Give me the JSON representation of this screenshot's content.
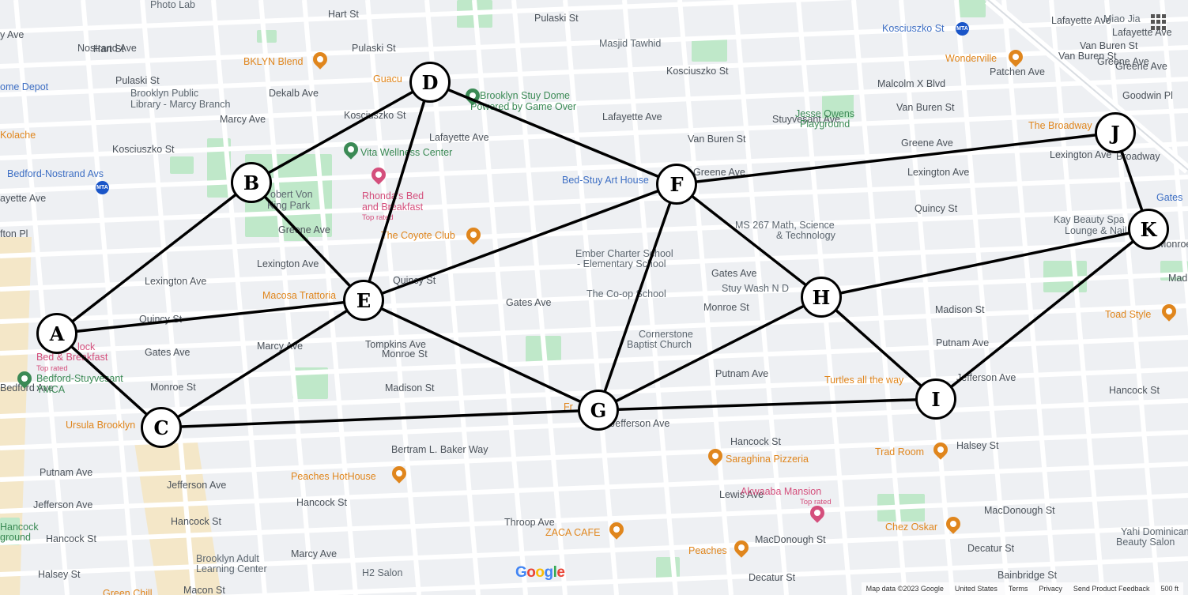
{
  "map": {
    "street_labels": [
      {
        "id": "hart-st",
        "text": "Hart St"
      },
      {
        "id": "hart-st-2",
        "text": "Hart St"
      },
      {
        "id": "pulaski-st",
        "text": "Pulaski St"
      },
      {
        "id": "pulaski-st-2",
        "text": "Pulaski St"
      },
      {
        "id": "pulaski-st-3",
        "text": "Pulaski St"
      },
      {
        "id": "dekalb-ave",
        "text": "Dekalb Ave"
      },
      {
        "id": "kosciuszko-st",
        "text": "Kosciuszko St"
      },
      {
        "id": "kosciuszko-st-2",
        "text": "Kosciuszko St"
      },
      {
        "id": "kosciuszko-st-3",
        "text": "Kosciuszko St"
      },
      {
        "id": "lafayette-ave",
        "text": "Lafayette Ave"
      },
      {
        "id": "lafayette-ave-2",
        "text": "Lafayette Ave"
      },
      {
        "id": "lafayette-ave-3",
        "text": "Lafayette Ave"
      },
      {
        "id": "van-buren-st",
        "text": "Van Buren St"
      },
      {
        "id": "van-buren-st-2",
        "text": "Van Buren St"
      },
      {
        "id": "van-buren-st-3",
        "text": "Van Buren St"
      },
      {
        "id": "greene-ave",
        "text": "Greene Ave"
      },
      {
        "id": "greene-ave-2",
        "text": "Greene Ave"
      },
      {
        "id": "greene-ave-3",
        "text": "Greene Ave"
      },
      {
        "id": "greene-ave-4",
        "text": "Greene Ave"
      },
      {
        "id": "lexington-ave",
        "text": "Lexington Ave"
      },
      {
        "id": "lexington-ave-2",
        "text": "Lexington Ave"
      },
      {
        "id": "lexington-ave-3",
        "text": "Lexington Ave"
      },
      {
        "id": "lexington-ave-4",
        "text": "Lexington Ave"
      },
      {
        "id": "quincy-st",
        "text": "Quincy St"
      },
      {
        "id": "quincy-st-2",
        "text": "Quincy St"
      },
      {
        "id": "quincy-st-3",
        "text": "Quincy St"
      },
      {
        "id": "gates-ave",
        "text": "Gates Ave"
      },
      {
        "id": "gates-ave-2",
        "text": "Gates Ave"
      },
      {
        "id": "gates-ave-3",
        "text": "Gates Ave"
      },
      {
        "id": "monroe-st",
        "text": "Monroe St"
      },
      {
        "id": "monroe-st-2",
        "text": "Monroe St"
      },
      {
        "id": "monroe-st-3",
        "text": "Monroe St"
      },
      {
        "id": "madison-st",
        "text": "Madison St"
      },
      {
        "id": "madison-st-2",
        "text": "Madison St"
      },
      {
        "id": "putnam-ave",
        "text": "Putnam Ave"
      },
      {
        "id": "putnam-ave-2",
        "text": "Putnam Ave"
      },
      {
        "id": "putnam-ave-3",
        "text": "Putnam Ave"
      },
      {
        "id": "jefferson-ave",
        "text": "Jefferson Ave"
      },
      {
        "id": "jefferson-ave-2",
        "text": "Jefferson Ave"
      },
      {
        "id": "jefferson-ave-3",
        "text": "Jefferson Ave"
      },
      {
        "id": "jefferson-ave-4",
        "text": "Jefferson Ave"
      },
      {
        "id": "hancock-st",
        "text": "Hancock St"
      },
      {
        "id": "hancock-st-2",
        "text": "Hancock St"
      },
      {
        "id": "hancock-st-3",
        "text": "Hancock St"
      },
      {
        "id": "hancock-st-4",
        "text": "Hancock St"
      },
      {
        "id": "hancock-st-5",
        "text": "Hancock St"
      },
      {
        "id": "halsey-st",
        "text": "Halsey St"
      },
      {
        "id": "halsey-st-2",
        "text": "Halsey St"
      },
      {
        "id": "macdonough-st",
        "text": "MacDonough St"
      },
      {
        "id": "macdonough-st-2",
        "text": "MacDonough St"
      },
      {
        "id": "decatur-st",
        "text": "Decatur St"
      },
      {
        "id": "decatur-st-2",
        "text": "Decatur St"
      },
      {
        "id": "bainbridge-st",
        "text": "Bainbridge St"
      },
      {
        "id": "macon-st",
        "text": "Macon St"
      },
      {
        "id": "bertram-baker-way",
        "text": "Bertram L. Baker Way"
      },
      {
        "id": "nostrand-ave",
        "text": "Nostrand Ave"
      },
      {
        "id": "marcy-ave",
        "text": "Marcy Ave"
      },
      {
        "id": "marcy-ave-2",
        "text": "Marcy Ave"
      },
      {
        "id": "marcy-ave-3",
        "text": "Marcy Ave"
      },
      {
        "id": "tompkins-ave",
        "text": "Tompkins Ave"
      },
      {
        "id": "throop-ave",
        "text": "Throop Ave"
      },
      {
        "id": "lewis-ave",
        "text": "Lewis Ave"
      },
      {
        "id": "stuyvesant-ave",
        "text": "Stuyvesant Ave"
      },
      {
        "id": "malcolm-x-blvd",
        "text": "Malcolm X Blvd"
      },
      {
        "id": "patchen-ave",
        "text": "Patchen Ave"
      },
      {
        "id": "bedford-ave",
        "text": "Bedford Ave"
      },
      {
        "id": "broadway",
        "text": "Broadway"
      },
      {
        "id": "goodwin-pl",
        "text": "Goodwin Pl"
      },
      {
        "id": "lafayette-ave-4",
        "text": "Lafayette Ave"
      },
      {
        "id": "van-buren-st-4",
        "text": "Van Buren St"
      },
      {
        "id": "greene-ave-5",
        "text": "Greene Ave"
      },
      {
        "id": "fulton-pl",
        "text": "fton Pl"
      },
      {
        "id": "ayette-ave",
        "text": "ayette Ave"
      },
      {
        "id": "y-ave",
        "text": "y Ave"
      },
      {
        "id": "madison-cut",
        "text": "Mad"
      },
      {
        "id": "monroe-cut",
        "text": "Monroe"
      }
    ],
    "poi_labels": [
      {
        "id": "photo-lab",
        "text": "Photo Lab",
        "kind": "gray"
      },
      {
        "id": "bklyn-blend",
        "text": "BKLYN Blend",
        "kind": "food"
      },
      {
        "id": "guacuco",
        "text": "Guacu",
        "kind": "food"
      },
      {
        "id": "home-depot",
        "text": "ome Depot",
        "kind": "blue"
      },
      {
        "id": "brooklyn-public-library",
        "text": "Brooklyn Public",
        "kind": "gray"
      },
      {
        "id": "brooklyn-public-library-2",
        "text": "Library - Marcy Branch",
        "kind": "gray"
      },
      {
        "id": "kolache",
        "text": "Kolache",
        "kind": "food"
      },
      {
        "id": "bedford-nostrand",
        "text": "Bedford-Nostrand Avs",
        "kind": "blue"
      },
      {
        "id": "masjid-tawhid",
        "text": "Masjid Tawhid",
        "kind": "gray"
      },
      {
        "id": "brooklyn-stuy-dome",
        "text": "Brooklyn Stuy Dome",
        "kind": "green"
      },
      {
        "id": "brooklyn-stuy-dome-2",
        "text": "Powered by Game Over",
        "kind": "green"
      },
      {
        "id": "vita-wellness",
        "text": "Vita Wellness Center",
        "kind": "green"
      },
      {
        "id": "rhondas",
        "text": "Rhonda's Bed",
        "kind": "pink"
      },
      {
        "id": "rhondas-2",
        "text": "and Breakfast",
        "kind": "pink"
      },
      {
        "id": "rhondas-top",
        "text": "Top rated",
        "kind": "pinksub"
      },
      {
        "id": "robert-von-king",
        "text": "obert Von",
        "kind": "gray"
      },
      {
        "id": "robert-von-king-2",
        "text": "King Park",
        "kind": "gray"
      },
      {
        "id": "coyote-club",
        "text": "The Coyote Club",
        "kind": "food"
      },
      {
        "id": "macosa",
        "text": "Macosa Trattoria",
        "kind": "food"
      },
      {
        "id": "hancock-bnb",
        "text": "lock",
        "kind": "pink"
      },
      {
        "id": "hancock-bnb-2",
        "text": "Bed & Breakfast",
        "kind": "pink"
      },
      {
        "id": "hancock-bnb-top",
        "text": "Top rated",
        "kind": "pinksub"
      },
      {
        "id": "ymca",
        "text": "Bedford-Stuyvesant",
        "kind": "green"
      },
      {
        "id": "ymca-2",
        "text": "YMCA",
        "kind": "green"
      },
      {
        "id": "ursula",
        "text": "Ursula Brooklyn",
        "kind": "food"
      },
      {
        "id": "bed-stuy-art",
        "text": "Bed-Stuy Art House",
        "kind": "blue"
      },
      {
        "id": "ember-charter",
        "text": "Ember Charter School",
        "kind": "gray"
      },
      {
        "id": "ember-charter-2",
        "text": "- Elementary School",
        "kind": "gray"
      },
      {
        "id": "co-op-school",
        "text": "The Co-op School",
        "kind": "gray"
      },
      {
        "id": "cornerstone",
        "text": "Cornerstone",
        "kind": "gray"
      },
      {
        "id": "cornerstone-2",
        "text": "Baptist Church",
        "kind": "gray"
      },
      {
        "id": "ms-267",
        "text": "MS 267 Math, Science",
        "kind": "gray"
      },
      {
        "id": "ms-267-2",
        "text": "& Technology",
        "kind": "gray"
      },
      {
        "id": "stuy-wash",
        "text": "Stuy Wash N D",
        "kind": "gray"
      },
      {
        "id": "jesse-owens",
        "text": "Jesse Owens",
        "kind": "green"
      },
      {
        "id": "jesse-owens-2",
        "text": "Playground",
        "kind": "green"
      },
      {
        "id": "kosciuszko-station",
        "text": "Kosciuszko St",
        "kind": "blue"
      },
      {
        "id": "wonderville",
        "text": "Wonderville",
        "kind": "food"
      },
      {
        "id": "miao-jia",
        "text": "Miao Jia",
        "kind": "gray"
      },
      {
        "id": "the-broadway",
        "text": "The Broadway",
        "kind": "food"
      },
      {
        "id": "kay-beauty",
        "text": "Kay Beauty Spa",
        "kind": "gray"
      },
      {
        "id": "kay-beauty-2",
        "text": "Lounge & Nail B",
        "kind": "gray"
      },
      {
        "id": "gates-cut",
        "text": "Gates",
        "kind": "blue"
      },
      {
        "id": "toad-style",
        "text": "Toad Style",
        "kind": "food"
      },
      {
        "id": "turtles",
        "text": "Turtles all the way",
        "kind": "food"
      },
      {
        "id": "trad-room",
        "text": "Trad Room",
        "kind": "food"
      },
      {
        "id": "saraghina",
        "text": "Saraghina Pizzeria",
        "kind": "food"
      },
      {
        "id": "akwaaba",
        "text": "Akwaaba Mansion",
        "kind": "pink"
      },
      {
        "id": "akwaaba-top",
        "text": "Top rated",
        "kind": "pinksub"
      },
      {
        "id": "chez-oskar",
        "text": "Chez Oskar",
        "kind": "food"
      },
      {
        "id": "peaches-hothouse",
        "text": "Peaches HotHouse",
        "kind": "food"
      },
      {
        "id": "zaca-cafe",
        "text": "ZACA CAFE",
        "kind": "food"
      },
      {
        "id": "peaches",
        "text": "Peaches",
        "kind": "food"
      },
      {
        "id": "yahi",
        "text": "Yahi Dominican",
        "kind": "gray"
      },
      {
        "id": "yahi-2",
        "text": "Beauty Salon",
        "kind": "gray"
      },
      {
        "id": "brooklyn-adult",
        "text": "Brooklyn Adult",
        "kind": "gray"
      },
      {
        "id": "brooklyn-adult-2",
        "text": "Learning Center",
        "kind": "gray"
      },
      {
        "id": "h2-salon",
        "text": "H2 Salon",
        "kind": "gray"
      },
      {
        "id": "hancock-playground",
        "text": "Hancock",
        "kind": "green"
      },
      {
        "id": "hancock-playground-2",
        "text": "ground",
        "kind": "green"
      },
      {
        "id": "green-chili",
        "text": "Green Chill",
        "kind": "food"
      },
      {
        "id": "fr-cut",
        "text": "Fr",
        "kind": "food"
      }
    ],
    "metro_badge": "MTA",
    "google_logo": "Google",
    "footer": [
      "Map data ©2023 Google",
      "United States",
      "Terms",
      "Privacy",
      "Send Product Feedback",
      "500 ft"
    ]
  },
  "graph": {
    "nodes": [
      "A",
      "B",
      "C",
      "D",
      "E",
      "F",
      "G",
      "H",
      "I",
      "J",
      "K"
    ],
    "edges": [
      [
        "A",
        "B"
      ],
      [
        "A",
        "E"
      ],
      [
        "A",
        "C"
      ],
      [
        "B",
        "D"
      ],
      [
        "B",
        "E"
      ],
      [
        "C",
        "E"
      ],
      [
        "C",
        "G"
      ],
      [
        "D",
        "E"
      ],
      [
        "D",
        "F"
      ],
      [
        "E",
        "F"
      ],
      [
        "E",
        "G"
      ],
      [
        "F",
        "G"
      ],
      [
        "F",
        "H"
      ],
      [
        "F",
        "J"
      ],
      [
        "G",
        "H"
      ],
      [
        "G",
        "I"
      ],
      [
        "H",
        "I"
      ],
      [
        "H",
        "K"
      ],
      [
        "I",
        "K"
      ],
      [
        "J",
        "K"
      ]
    ]
  },
  "colors": {
    "map_bg": "#eef0f3",
    "street": "#ffffff",
    "park": "#bfe8c9",
    "edge": "#000000",
    "node_fill": "#ffffff",
    "food_poi": "#e0861d",
    "green_poi": "#3b8a55",
    "blue_poi": "#3e6fc4",
    "pink_poi": "#d44f7c"
  }
}
